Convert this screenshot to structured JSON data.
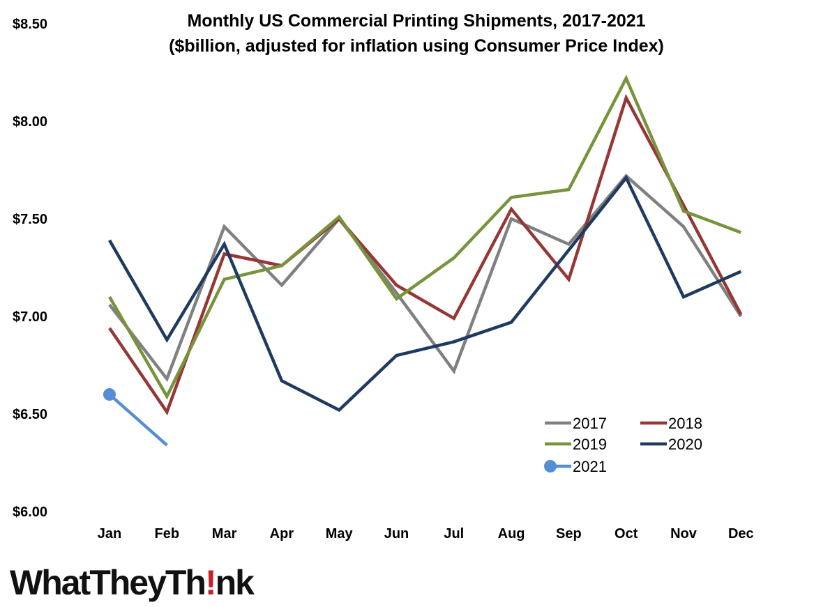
{
  "chart_data": {
    "type": "line",
    "title": "Monthly US Commercial Printing Shipments, 2017-2021",
    "subtitle": "($billion, adjusted for inflation using Consumer Price Index)",
    "categories": [
      "Jan",
      "Feb",
      "Mar",
      "Apr",
      "May",
      "Jun",
      "Jul",
      "Aug",
      "Sep",
      "Oct",
      "Nov",
      "Dec"
    ],
    "ylim": [
      6.0,
      8.5
    ],
    "yticks": [
      6.0,
      6.5,
      7.0,
      7.5,
      8.0,
      8.5
    ],
    "ytick_labels": [
      "$6.00",
      "$6.50",
      "$7.00",
      "$7.50",
      "$8.00",
      "$8.50"
    ],
    "legend_position": "lower-right",
    "series": [
      {
        "name": "2017",
        "color": "#808080",
        "values": [
          7.06,
          6.68,
          7.46,
          7.16,
          7.5,
          7.12,
          6.72,
          7.5,
          7.37,
          7.72,
          7.46,
          7.0
        ]
      },
      {
        "name": "2018",
        "color": "#953735",
        "values": [
          6.94,
          6.51,
          7.32,
          7.26,
          7.5,
          7.16,
          6.99,
          7.55,
          7.19,
          8.12,
          7.57,
          7.01
        ]
      },
      {
        "name": "2019",
        "color": "#77933c",
        "values": [
          7.1,
          6.59,
          7.19,
          7.26,
          7.51,
          7.09,
          7.3,
          7.61,
          7.65,
          8.22,
          7.54,
          7.43
        ]
      },
      {
        "name": "2020",
        "color": "#1f3a60",
        "values": [
          7.39,
          6.88,
          7.37,
          6.67,
          6.52,
          6.8,
          6.87,
          6.97,
          7.34,
          7.71,
          7.1,
          7.23
        ]
      },
      {
        "name": "2021",
        "color": "#558ed5",
        "values": [
          6.6,
          6.34,
          null,
          null,
          null,
          null,
          null,
          null,
          null,
          null,
          null,
          null
        ]
      }
    ]
  },
  "logo": {
    "part1": "WhatTheyTh",
    "excl": "!",
    "part2": "nk"
  }
}
